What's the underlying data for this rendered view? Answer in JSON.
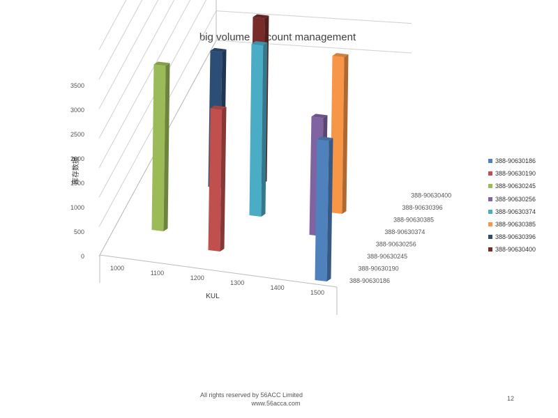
{
  "chart_data": {
    "type": "bar",
    "subtype": "3d-column",
    "title": "big volume discount management",
    "xlabel": "KUL",
    "ylabel": "库存数据",
    "x_categories": [
      "1000",
      "1100",
      "1200",
      "1300",
      "1400",
      "1500"
    ],
    "depth_categories": [
      "388-90630186",
      "388-90630190",
      "388-90630245",
      "388-90630256",
      "388-90630374",
      "388-90630385",
      "388-90630396",
      "388-90630400"
    ],
    "ylim": [
      0,
      3500
    ],
    "yticks": [
      "0",
      "500",
      "1000",
      "1500",
      "2000",
      "2500",
      "3000",
      "3500"
    ],
    "grid": true,
    "legend_position": "right",
    "series": [
      {
        "name": "388-90630186",
        "x": "1500",
        "value": 2450,
        "color": "#4f81bd"
      },
      {
        "name": "388-90630190",
        "x": "1200",
        "value": 2400,
        "color": "#c0504d"
      },
      {
        "name": "388-90630245",
        "x": "1000",
        "value": 2800,
        "color": "#9bbb59"
      },
      {
        "name": "388-90630256",
        "x": "1400",
        "value": 2000,
        "color": "#8064a2"
      },
      {
        "name": "388-90630374",
        "x": "1300",
        "value": 2900,
        "color": "#4bacc6"
      },
      {
        "name": "388-90630385",
        "x": "1500",
        "value": 2650,
        "color": "#f79646"
      },
      {
        "name": "388-90630396",
        "x": "1200",
        "value": 2300,
        "color": "#2c4d75"
      },
      {
        "name": "388-90630400",
        "x": "1300",
        "value": 2800,
        "color": "#772c2a"
      }
    ]
  },
  "footer": {
    "line1": "All rights reserved by 56ACC Limited",
    "line2": "www.56acca.com",
    "page": "12"
  }
}
